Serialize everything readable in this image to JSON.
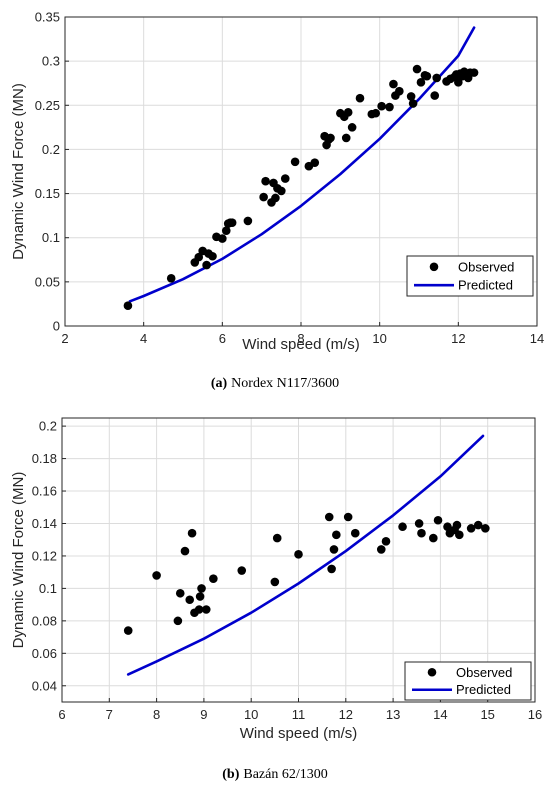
{
  "chart_data": [
    {
      "type": "scatter",
      "caption_tag": "(a)",
      "caption_text": "Nordex N117/3600",
      "xlabel": "Wind speed (m/s)",
      "ylabel": "Dynamic Wind Force (MN)",
      "xlim": [
        2,
        14
      ],
      "ylim": [
        0,
        0.35
      ],
      "xticks": [
        "2",
        "4",
        "6",
        "8",
        "10",
        "12",
        "14"
      ],
      "yticks": [
        "0",
        "0.05",
        "0.1",
        "0.15",
        "0.2",
        "0.25",
        "0.3",
        "0.35"
      ],
      "grid": true,
      "legend_position": "bottom-right",
      "colors": {
        "observed": "#000000",
        "predicted": "#0000cc"
      },
      "series": [
        {
          "name": "Observed",
          "kind": "markers",
          "points": [
            [
              3.6,
              0.023
            ],
            [
              4.7,
              0.054
            ],
            [
              5.3,
              0.072
            ],
            [
              5.4,
              0.078
            ],
            [
              5.5,
              0.085
            ],
            [
              5.6,
              0.069
            ],
            [
              5.65,
              0.082
            ],
            [
              5.75,
              0.079
            ],
            [
              5.85,
              0.101
            ],
            [
              6.0,
              0.099
            ],
            [
              6.1,
              0.108
            ],
            [
              6.15,
              0.116
            ],
            [
              6.2,
              0.117
            ],
            [
              6.25,
              0.117
            ],
            [
              6.65,
              0.119
            ],
            [
              7.05,
              0.146
            ],
            [
              7.1,
              0.164
            ],
            [
              7.25,
              0.14
            ],
            [
              7.3,
              0.162
            ],
            [
              7.35,
              0.145
            ],
            [
              7.4,
              0.156
            ],
            [
              7.5,
              0.153
            ],
            [
              7.6,
              0.167
            ],
            [
              7.85,
              0.186
            ],
            [
              8.2,
              0.181
            ],
            [
              8.35,
              0.185
            ],
            [
              8.6,
              0.215
            ],
            [
              8.65,
              0.205
            ],
            [
              8.7,
              0.211
            ],
            [
              8.75,
              0.213
            ],
            [
              9.0,
              0.241
            ],
            [
              9.1,
              0.237
            ],
            [
              9.15,
              0.213
            ],
            [
              9.2,
              0.242
            ],
            [
              9.3,
              0.225
            ],
            [
              9.5,
              0.258
            ],
            [
              9.8,
              0.24
            ],
            [
              9.9,
              0.241
            ],
            [
              10.05,
              0.249
            ],
            [
              10.25,
              0.248
            ],
            [
              10.35,
              0.274
            ],
            [
              10.4,
              0.261
            ],
            [
              10.5,
              0.266
            ],
            [
              10.8,
              0.26
            ],
            [
              10.85,
              0.252
            ],
            [
              10.95,
              0.291
            ],
            [
              11.05,
              0.276
            ],
            [
              11.15,
              0.284
            ],
            [
              11.2,
              0.283
            ],
            [
              11.4,
              0.261
            ],
            [
              11.45,
              0.281
            ],
            [
              11.7,
              0.277
            ],
            [
              11.8,
              0.28
            ],
            [
              11.9,
              0.282
            ],
            [
              11.95,
              0.285
            ],
            [
              12.0,
              0.276
            ],
            [
              12.05,
              0.286
            ],
            [
              12.1,
              0.283
            ],
            [
              12.15,
              0.288
            ],
            [
              12.25,
              0.281
            ],
            [
              12.3,
              0.287
            ],
            [
              12.4,
              0.287
            ]
          ]
        },
        {
          "name": "Predicted",
          "kind": "line",
          "points": [
            [
              3.65,
              0.028
            ],
            [
              4.0,
              0.034
            ],
            [
              5.0,
              0.053
            ],
            [
              6.0,
              0.076
            ],
            [
              7.0,
              0.104
            ],
            [
              8.0,
              0.136
            ],
            [
              9.0,
              0.172
            ],
            [
              10.0,
              0.212
            ],
            [
              11.0,
              0.257
            ],
            [
              12.0,
              0.306
            ],
            [
              12.4,
              0.338
            ]
          ]
        }
      ]
    },
    {
      "type": "scatter",
      "caption_tag": "(b)",
      "caption_text": "Bazán 62/1300",
      "xlabel": "Wind speed (m/s)",
      "ylabel": "Dynamic Wind Force (MN)",
      "xlim": [
        6,
        16
      ],
      "ylim": [
        0.03,
        0.205
      ],
      "xticks": [
        "6",
        "7",
        "8",
        "9",
        "10",
        "11",
        "12",
        "13",
        "14",
        "15",
        "16"
      ],
      "yticks": [
        "0.04",
        "0.06",
        "0.08",
        "0.1",
        "0.12",
        "0.14",
        "0.16",
        "0.18",
        "0.2"
      ],
      "grid": true,
      "legend_position": "bottom-right",
      "colors": {
        "observed": "#000000",
        "predicted": "#0000cc"
      },
      "series": [
        {
          "name": "Observed",
          "kind": "markers",
          "points": [
            [
              7.4,
              0.074
            ],
            [
              8.0,
              0.108
            ],
            [
              8.45,
              0.08
            ],
            [
              8.5,
              0.097
            ],
            [
              8.6,
              0.123
            ],
            [
              8.7,
              0.093
            ],
            [
              8.75,
              0.134
            ],
            [
              8.8,
              0.085
            ],
            [
              8.9,
              0.087
            ],
            [
              8.92,
              0.095
            ],
            [
              8.95,
              0.1
            ],
            [
              9.05,
              0.087
            ],
            [
              9.2,
              0.106
            ],
            [
              9.8,
              0.111
            ],
            [
              10.5,
              0.104
            ],
            [
              10.55,
              0.131
            ],
            [
              11.0,
              0.121
            ],
            [
              11.65,
              0.144
            ],
            [
              11.7,
              0.112
            ],
            [
              11.75,
              0.124
            ],
            [
              11.8,
              0.133
            ],
            [
              12.05,
              0.144
            ],
            [
              12.2,
              0.134
            ],
            [
              12.75,
              0.124
            ],
            [
              12.85,
              0.129
            ],
            [
              13.2,
              0.138
            ],
            [
              13.55,
              0.14
            ],
            [
              13.6,
              0.134
            ],
            [
              13.85,
              0.131
            ],
            [
              13.95,
              0.142
            ],
            [
              14.15,
              0.138
            ],
            [
              14.2,
              0.134
            ],
            [
              14.3,
              0.136
            ],
            [
              14.35,
              0.139
            ],
            [
              14.4,
              0.133
            ],
            [
              14.65,
              0.137
            ],
            [
              14.8,
              0.139
            ],
            [
              14.95,
              0.137
            ]
          ]
        },
        {
          "name": "Predicted",
          "kind": "line",
          "points": [
            [
              7.4,
              0.047
            ],
            [
              8.0,
              0.055
            ],
            [
              9.0,
              0.069
            ],
            [
              10.0,
              0.085
            ],
            [
              11.0,
              0.103
            ],
            [
              12.0,
              0.123
            ],
            [
              13.0,
              0.145
            ],
            [
              14.0,
              0.169
            ],
            [
              14.9,
              0.194
            ]
          ]
        }
      ]
    }
  ]
}
